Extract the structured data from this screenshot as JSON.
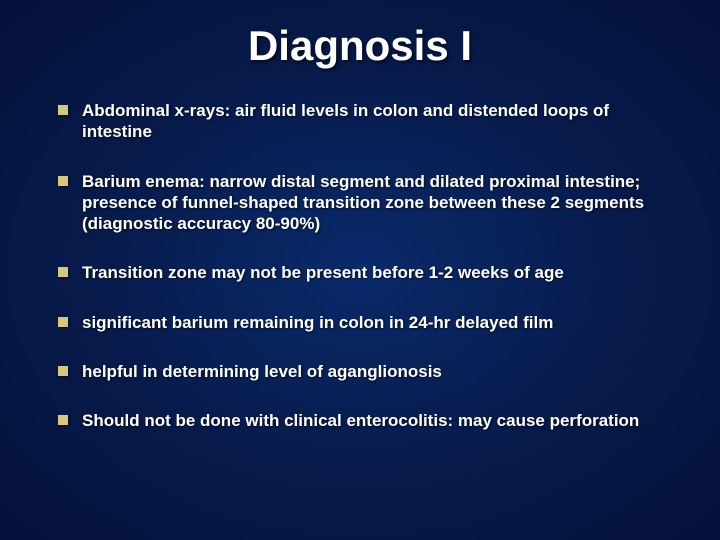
{
  "slide": {
    "title": "Diagnosis I",
    "background": {
      "center_color": "#0a2a6a",
      "mid_color": "#071a4a",
      "edge_color": "#05123a"
    },
    "title_style": {
      "color": "#ffffff",
      "fontsize": 42,
      "weight": "bold",
      "align": "center"
    },
    "bullet_style": {
      "marker_shape": "square",
      "marker_color": "#d9c87a",
      "marker_size": 10,
      "text_color": "#ffffff",
      "fontsize": 17,
      "weight": "bold"
    },
    "bullets": [
      "Abdominal x-rays: air fluid levels in colon and distended loops of intestine",
      "Barium enema: narrow distal segment and dilated proximal intestine; presence of funnel-shaped transition zone between these 2 segments (diagnostic accuracy 80-90%)",
      "Transition zone may not be present before 1-2 weeks of age",
      "significant barium remaining in colon in 24-hr delayed film",
      "helpful in determining level of aganglionosis",
      "Should not be done with clinical enterocolitis: may cause perforation"
    ]
  }
}
